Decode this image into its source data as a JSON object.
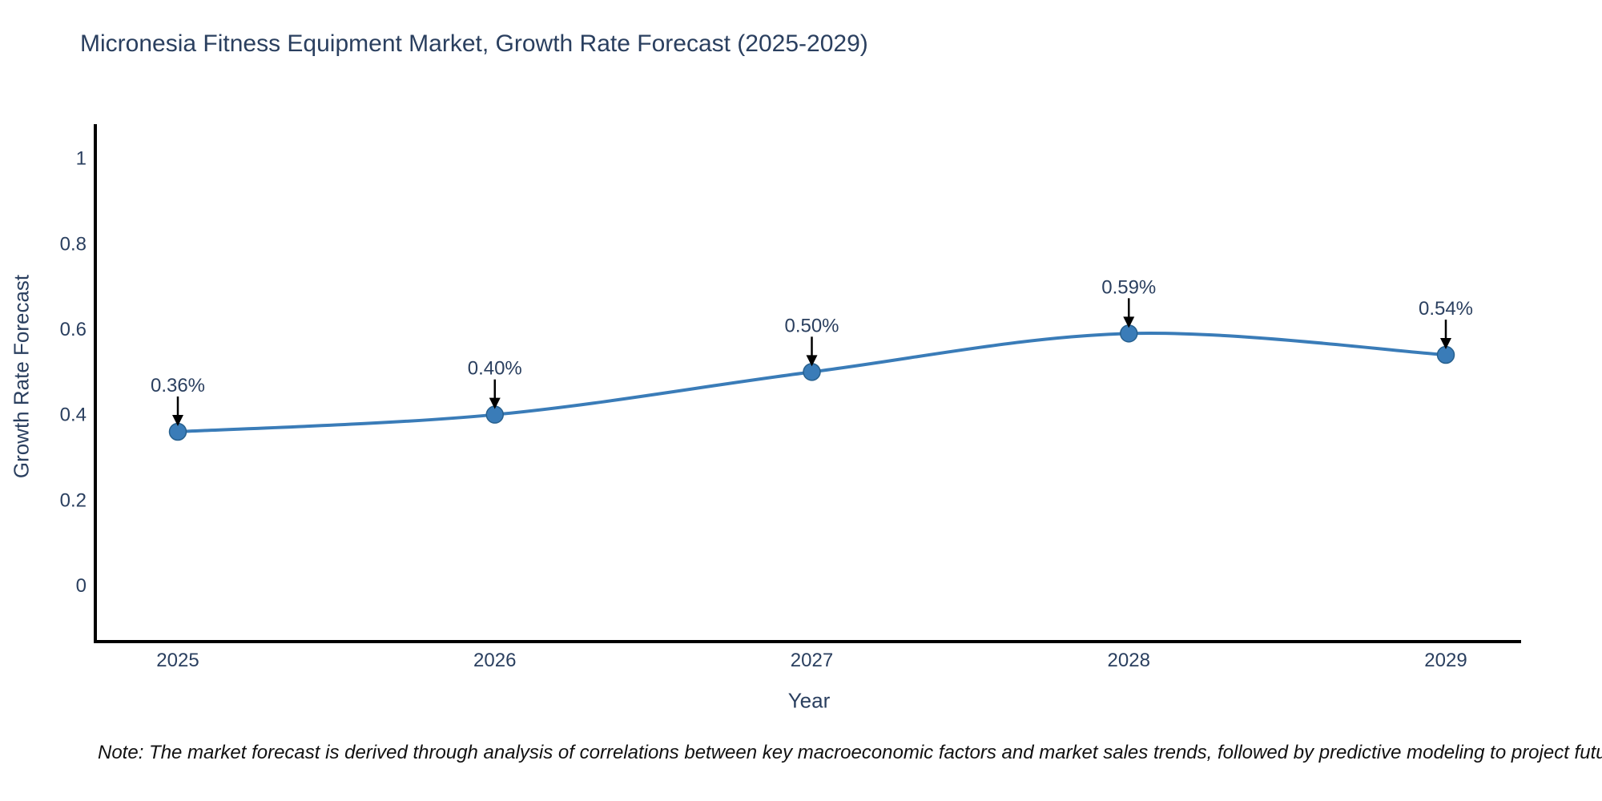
{
  "title": "Micronesia Fitness Equipment Market, Growth Rate Forecast (2025-2029)",
  "note": "Note: The market forecast is derived through analysis of correlations between key macroeconomic factors and market sales trends, followed by predictive modeling to project future sales",
  "chart_data": {
    "type": "line",
    "title": "Micronesia Fitness Equipment Market, Growth Rate Forecast (2025-2029)",
    "xlabel": "Year",
    "ylabel": "Growth Rate Forecast",
    "x": [
      2025,
      2026,
      2027,
      2028,
      2029
    ],
    "x_tick_labels": [
      "2025",
      "2026",
      "2027",
      "2028",
      "2029"
    ],
    "series": [
      {
        "name": "Growth Rate Forecast",
        "values": [
          0.36,
          0.4,
          0.5,
          0.59,
          0.54
        ]
      }
    ],
    "point_labels": [
      "0.36%",
      "0.40%",
      "0.50%",
      "0.59%",
      "0.54%"
    ],
    "yticks": [
      0,
      0.2,
      0.4,
      0.6,
      0.8,
      1
    ],
    "ytick_labels": [
      "0",
      "0.2",
      "0.4",
      "0.6",
      "0.8",
      "1"
    ],
    "ylim": [
      -0.13,
      1.08
    ],
    "grid": false,
    "legend": "none",
    "line_shape": "spline",
    "line_color": "#3a7cb8",
    "marker_color": "#3a7cb8",
    "marker_edge_color": "#27608e",
    "axis_color": "#000000",
    "text_color": "#2a3f5f",
    "annotation_arrow_color": "#000000",
    "background_color": "#ffffff"
  }
}
